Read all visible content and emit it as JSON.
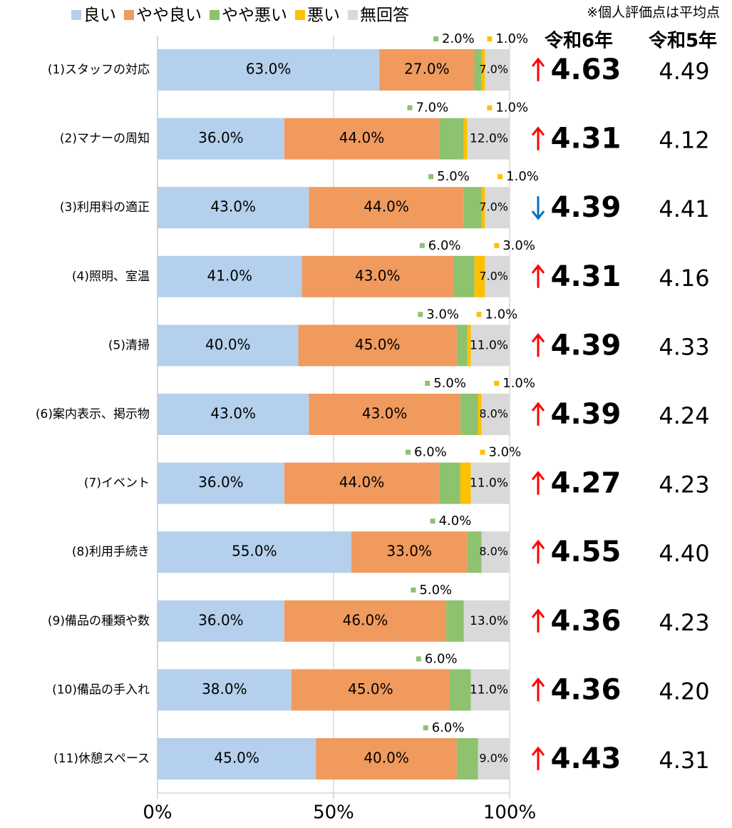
{
  "chart_data": {
    "type": "stacked_barh",
    "note": "※個人評価点は平均点",
    "score_headers": [
      "令和6年",
      "令和5年"
    ],
    "categories": [
      "(1)スタッフの対応",
      "(2)マナーの周知",
      "(3)利用料の適正",
      "(4)照明、室温",
      "(5)清掃",
      "(6)案内表示、掲示物",
      "(7)イベント",
      "(8)利用手続き",
      "(9)備品の種類や数",
      "(10)備品の手入れ",
      "(11)休憩スペース"
    ],
    "series": [
      {
        "name": "良い",
        "color": "#b4d0ec",
        "values": [
          63,
          36,
          43,
          41,
          40,
          43,
          36,
          55,
          36,
          38,
          45
        ],
        "value_labels": [
          "63.0%",
          "36.0%",
          "43.0%",
          "41.0%",
          "40.0%",
          "43.0%",
          "36.0%",
          "55.0%",
          "36.0%",
          "38.0%",
          "45.0%"
        ]
      },
      {
        "name": "やや良い",
        "color": "#f09a5e",
        "values": [
          27,
          44,
          44,
          43,
          45,
          43,
          44,
          33,
          46,
          45,
          40
        ],
        "value_labels": [
          "27.0%",
          "44.0%",
          "44.0%",
          "43.0%",
          "45.0%",
          "43.0%",
          "44.0%",
          "33.0%",
          "46.0%",
          "45.0%",
          "40.0%"
        ]
      },
      {
        "name": "やや悪い",
        "color": "#8dc26f",
        "values": [
          2,
          7,
          5,
          6,
          3,
          5,
          6,
          4,
          5,
          6,
          6
        ],
        "value_labels": [
          "2.0%",
          "7.0%",
          "5.0%",
          "6.0%",
          "3.0%",
          "5.0%",
          "6.0%",
          "4.0%",
          "5.0%",
          "6.0%",
          "6.0%"
        ]
      },
      {
        "name": "悪い",
        "color": "#ffc000",
        "values": [
          1,
          1,
          1,
          3,
          1,
          1,
          3,
          0,
          0,
          0,
          0
        ],
        "value_labels": [
          "1.0%",
          "1.0%",
          "1.0%",
          "3.0%",
          "1.0%",
          "1.0%",
          "3.0%",
          null,
          null,
          null,
          null
        ]
      },
      {
        "name": "無回答",
        "color": "#d9d9d9",
        "values": [
          7,
          12,
          7,
          7,
          11,
          8,
          11,
          8,
          13,
          11,
          9
        ],
        "value_labels": [
          "7.0%",
          "12.0%",
          "7.0%",
          "7.0%",
          "11.0%",
          "8.0%",
          "11.0%",
          "8.0%",
          "13.0%",
          "11.0%",
          "9.0%"
        ]
      }
    ],
    "scores_r6": [
      4.63,
      4.31,
      4.39,
      4.31,
      4.39,
      4.39,
      4.27,
      4.55,
      4.36,
      4.36,
      4.43
    ],
    "scores_r5": [
      4.49,
      4.12,
      4.41,
      4.16,
      4.33,
      4.24,
      4.23,
      4.4,
      4.23,
      4.2,
      4.31
    ],
    "scores_r5_labels": [
      "4.49",
      "4.12",
      "4.41",
      "4.16",
      "4.33",
      "4.24",
      "4.23",
      "4.40",
      "4.23",
      "4.20",
      "4.31"
    ],
    "xlim": [
      0,
      100
    ],
    "xticks": [
      {
        "value": 0,
        "label": "0%"
      },
      {
        "value": 50,
        "label": "50%"
      },
      {
        "value": 100,
        "label": "100%"
      }
    ],
    "grid": true
  }
}
